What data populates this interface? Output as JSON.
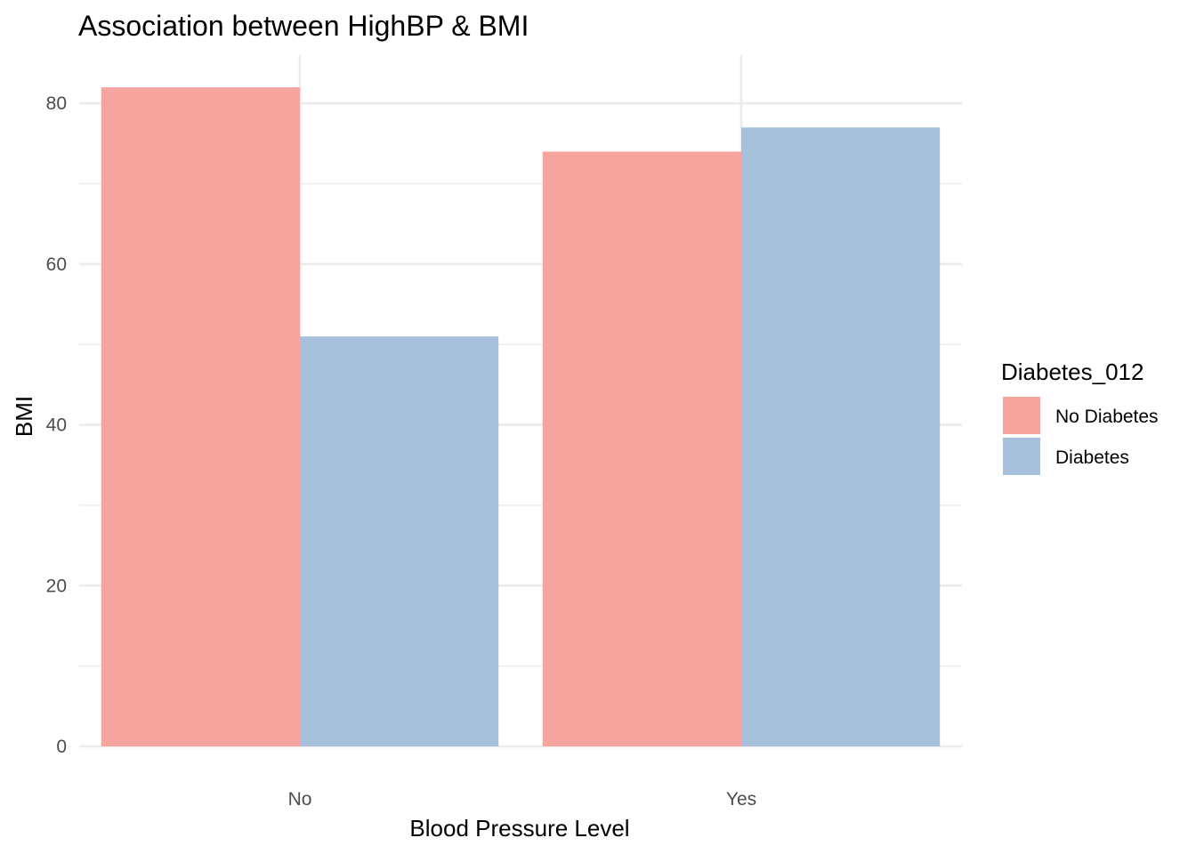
{
  "chart_data": {
    "type": "bar",
    "title": "Association between HighBP & BMI",
    "xlabel": "Blood Pressure Level",
    "ylabel": "BMI",
    "categories": [
      "No",
      "Yes"
    ],
    "series": [
      {
        "name": "No Diabetes",
        "values": [
          82,
          74
        ],
        "color": "#f7a39e"
      },
      {
        "name": "Diabetes",
        "values": [
          51,
          77
        ],
        "color": "#a7c1dc"
      }
    ],
    "ylim": [
      0,
      86
    ],
    "yticks": [
      0,
      20,
      40,
      60,
      80
    ],
    "yticks_minor": [
      10,
      30,
      50,
      70
    ],
    "grid": true,
    "legend": {
      "title": "Diabetes_012",
      "position": "right"
    }
  }
}
